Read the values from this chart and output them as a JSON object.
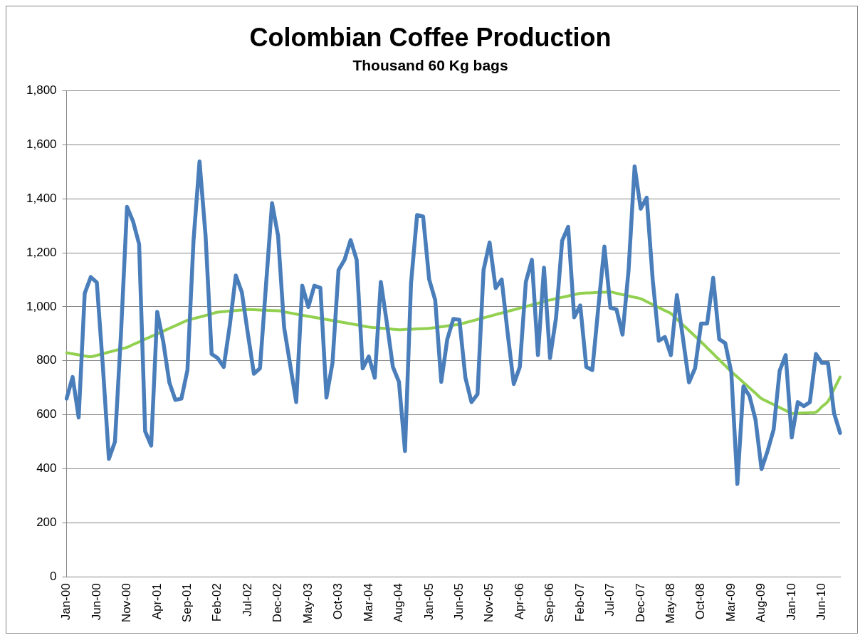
{
  "chart_data": {
    "type": "line",
    "title": "Colombian Coffee Production",
    "subtitle": "Thousand 60 Kg bags",
    "categories": [
      "Jan-00",
      null,
      null,
      null,
      null,
      "Jun-00",
      null,
      null,
      null,
      null,
      "Nov-00",
      null,
      null,
      null,
      null,
      "Apr-01",
      null,
      null,
      null,
      null,
      "Sep-01",
      null,
      null,
      null,
      null,
      "Feb-02",
      null,
      null,
      null,
      null,
      "Jul-02",
      null,
      null,
      null,
      null,
      "Dec-02",
      null,
      null,
      null,
      null,
      "May-03",
      null,
      null,
      null,
      null,
      "Oct-03",
      null,
      null,
      null,
      null,
      "Mar-04",
      null,
      null,
      null,
      null,
      "Aug-04",
      null,
      null,
      null,
      null,
      "Jan-05",
      null,
      null,
      null,
      null,
      "Jun-05",
      null,
      null,
      null,
      null,
      "Nov-05",
      null,
      null,
      null,
      null,
      "Apr-06",
      null,
      null,
      null,
      null,
      "Sep-06",
      null,
      null,
      null,
      null,
      "Feb-07",
      null,
      null,
      null,
      null,
      "Jul-07",
      null,
      null,
      null,
      null,
      "Dec-07",
      null,
      null,
      null,
      null,
      "May-08",
      null,
      null,
      null,
      null,
      "Oct-08",
      null,
      null,
      null,
      null,
      "Mar-09",
      null,
      null,
      null,
      null,
      "Aug-09",
      null,
      null,
      null,
      null,
      "Jan-10",
      null,
      null,
      null,
      null,
      "Jun-10",
      null,
      null,
      null
    ],
    "series": [
      {
        "color": "#4a7ebb",
        "values": [
          660,
          740,
          590,
          1050,
          1110,
          1090,
          780,
          437,
          500,
          900,
          1370,
          1316,
          1232,
          539,
          486,
          981,
          870,
          720,
          655,
          660,
          766,
          1244,
          1538,
          1262,
          825,
          810,
          777,
          930,
          1116,
          1054,
          900,
          752,
          772,
          1080,
          1384,
          1262,
          923,
          785,
          647,
          1078,
          999,
          1078,
          1070,
          664,
          792,
          1136,
          1174,
          1247,
          1174,
          772,
          816,
          737,
          1092,
          940,
          777,
          722,
          466,
          1087,
          1340,
          1334,
          1101,
          1025,
          722,
          880,
          955,
          952,
          737,
          647,
          676,
          1136,
          1238,
          1069,
          1101,
          900,
          714,
          777,
          1092,
          1174,
          821,
          1145,
          810,
          960,
          1244,
          1296,
          961,
          1005,
          777,
          766,
          999,
          1223,
          996,
          990,
          897,
          1136,
          1520,
          1363,
          1404,
          1098,
          874,
          888,
          821,
          1043,
          883,
          720,
          772,
          938,
          938,
          1107,
          880,
          865,
          757,
          344,
          705,
          670,
          583,
          399,
          466,
          545,
          763,
          821,
          516,
          647,
          632,
          647,
          825,
          792,
          792,
          606,
          533
        ]
      },
      {
        "color": "#92d050",
        "values": [
          830,
          826,
          822,
          818,
          815,
          820,
          826,
          832,
          838,
          844,
          850,
          860,
          870,
          880,
          890,
          900,
          910,
          920,
          930,
          940,
          950,
          956,
          962,
          968,
          974,
          980,
          982,
          984,
          986,
          988,
          990,
          989,
          988,
          987,
          986,
          985,
          981,
          977,
          973,
          969,
          965,
          961,
          957,
          953,
          949,
          945,
          941,
          937,
          933,
          929,
          925,
          923,
          921,
          919,
          917,
          915,
          916,
          917,
          918,
          919,
          920,
          923,
          926,
          929,
          932,
          935,
          941,
          947,
          953,
          959,
          965,
          971,
          977,
          983,
          989,
          995,
          1001,
          1007,
          1013,
          1019,
          1025,
          1030,
          1035,
          1040,
          1045,
          1050,
          1051,
          1052,
          1053,
          1054,
          1055,
          1050,
          1045,
          1040,
          1035,
          1030,
          1019,
          1008,
          997,
          986,
          975,
          954,
          933,
          912,
          891,
          870,
          848,
          826,
          804,
          782,
          760,
          740,
          720,
          700,
          680,
          660,
          649,
          638,
          627,
          616,
          605,
          606,
          607,
          608,
          610,
          630,
          650,
          695,
          740
        ]
      }
    ],
    "ylim": [
      0,
      1800
    ],
    "yticks": [
      0,
      200,
      400,
      600,
      800,
      {
        "value": 1000,
        "label": "1,000"
      },
      {
        "value": 1200,
        "label": "1,200"
      },
      {
        "value": 1400,
        "label": "1,400"
      },
      {
        "value": 1600,
        "label": "1,600"
      },
      {
        "value": 1800,
        "label": "1,800"
      }
    ],
    "grid": "y",
    "legend": false,
    "marker": "none",
    "line_style": "solid"
  }
}
